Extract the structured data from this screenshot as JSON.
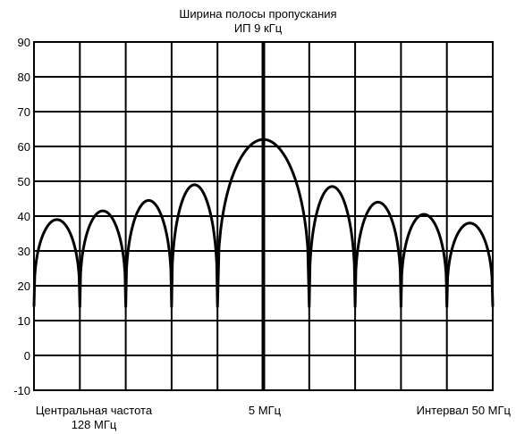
{
  "chart_data": {
    "type": "line",
    "title": "Ширина полосы пропускания",
    "subtitle": "ИП 9 кГц",
    "ylim": [
      -10,
      90
    ],
    "yticks": [
      -10,
      0,
      10,
      20,
      30,
      40,
      50,
      60,
      70,
      80,
      90
    ],
    "grid": true,
    "x_divisions": 10,
    "x_annotations": {
      "left_line1": "Центральная частота",
      "left_line2": "128 МГц",
      "center": "5 МГц",
      "right": "Интервал 50 МГц"
    },
    "lobes": [
      {
        "x": [
          -5,
          -4
        ],
        "peak": 39
      },
      {
        "x": [
          -4,
          -3
        ],
        "peak": 41.5
      },
      {
        "x": [
          -3,
          -2
        ],
        "peak": 44.5
      },
      {
        "x": [
          -2,
          -1
        ],
        "peak": 49
      },
      {
        "x": [
          -1,
          1
        ],
        "peak": 62
      },
      {
        "x": [
          1,
          2
        ],
        "peak": 48.5
      },
      {
        "x": [
          2,
          3
        ],
        "peak": 44
      },
      {
        "x": [
          3,
          4
        ],
        "peak": 40.5
      },
      {
        "x": [
          4,
          5
        ],
        "peak": 38
      }
    ],
    "edge_value": 14,
    "null_value": 14
  }
}
